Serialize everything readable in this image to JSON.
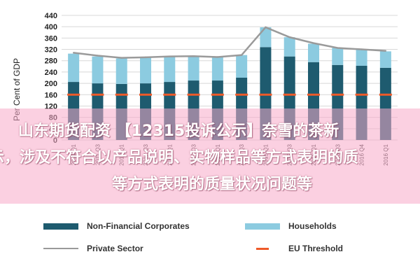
{
  "chart_data": {
    "type": "bar",
    "ylabel": "Per Cent of GDP",
    "ylim": [
      0,
      440
    ],
    "yticks": [
      0,
      40,
      80,
      120,
      160,
      200,
      240,
      280,
      320,
      360,
      400,
      440
    ],
    "categories": [
      "2011 Q1",
      "2011 Q3",
      "2012 Q1",
      "2012 Q3",
      "2013 Q1",
      "2013 Q3",
      "2014 Q1",
      "2014 Q3",
      "2015 Q1",
      "2015 Q3",
      "2016 Q1",
      "2016 Q3",
      "2016 Q4",
      "2016 Q1"
    ],
    "series": [
      {
        "name": "Non-Financial Corporates",
        "kind": "bar",
        "color": "#1e5b6f",
        "values": [
          205,
          200,
          198,
          200,
          205,
          210,
          210,
          220,
          328,
          295,
          275,
          265,
          262,
          255
        ]
      },
      {
        "name": "Households",
        "kind": "bar",
        "color": "#8ccbe0",
        "values": [
          100,
          95,
          90,
          92,
          88,
          85,
          85,
          80,
          70,
          68,
          65,
          60,
          58,
          58
        ]
      },
      {
        "name": "Private Sector",
        "kind": "line",
        "color": "#9a9a9a",
        "values": [
          308,
          298,
          290,
          292,
          295,
          296,
          293,
          300,
          398,
          363,
          342,
          325,
          320,
          315
        ]
      },
      {
        "name": "EU Threshold",
        "kind": "dash",
        "color": "#ee5a28",
        "values": [
          160,
          160,
          160,
          160,
          160,
          160,
          160,
          160,
          160,
          160,
          160,
          160,
          160,
          160
        ]
      }
    ]
  },
  "overlay": {
    "line1": "山东期货配资 【12315投诉公示】奈雪的茶新",
    "line2": "示，涉及不符合以产品说明、实物样品等方式表明的质",
    "line3": "等方式表明的质量状况问题等"
  },
  "legend": {
    "items": [
      {
        "label": "Non-Financial Corporates"
      },
      {
        "label": "Households"
      },
      {
        "label": "Private Sector"
      },
      {
        "label": "EU Threshold"
      }
    ]
  }
}
